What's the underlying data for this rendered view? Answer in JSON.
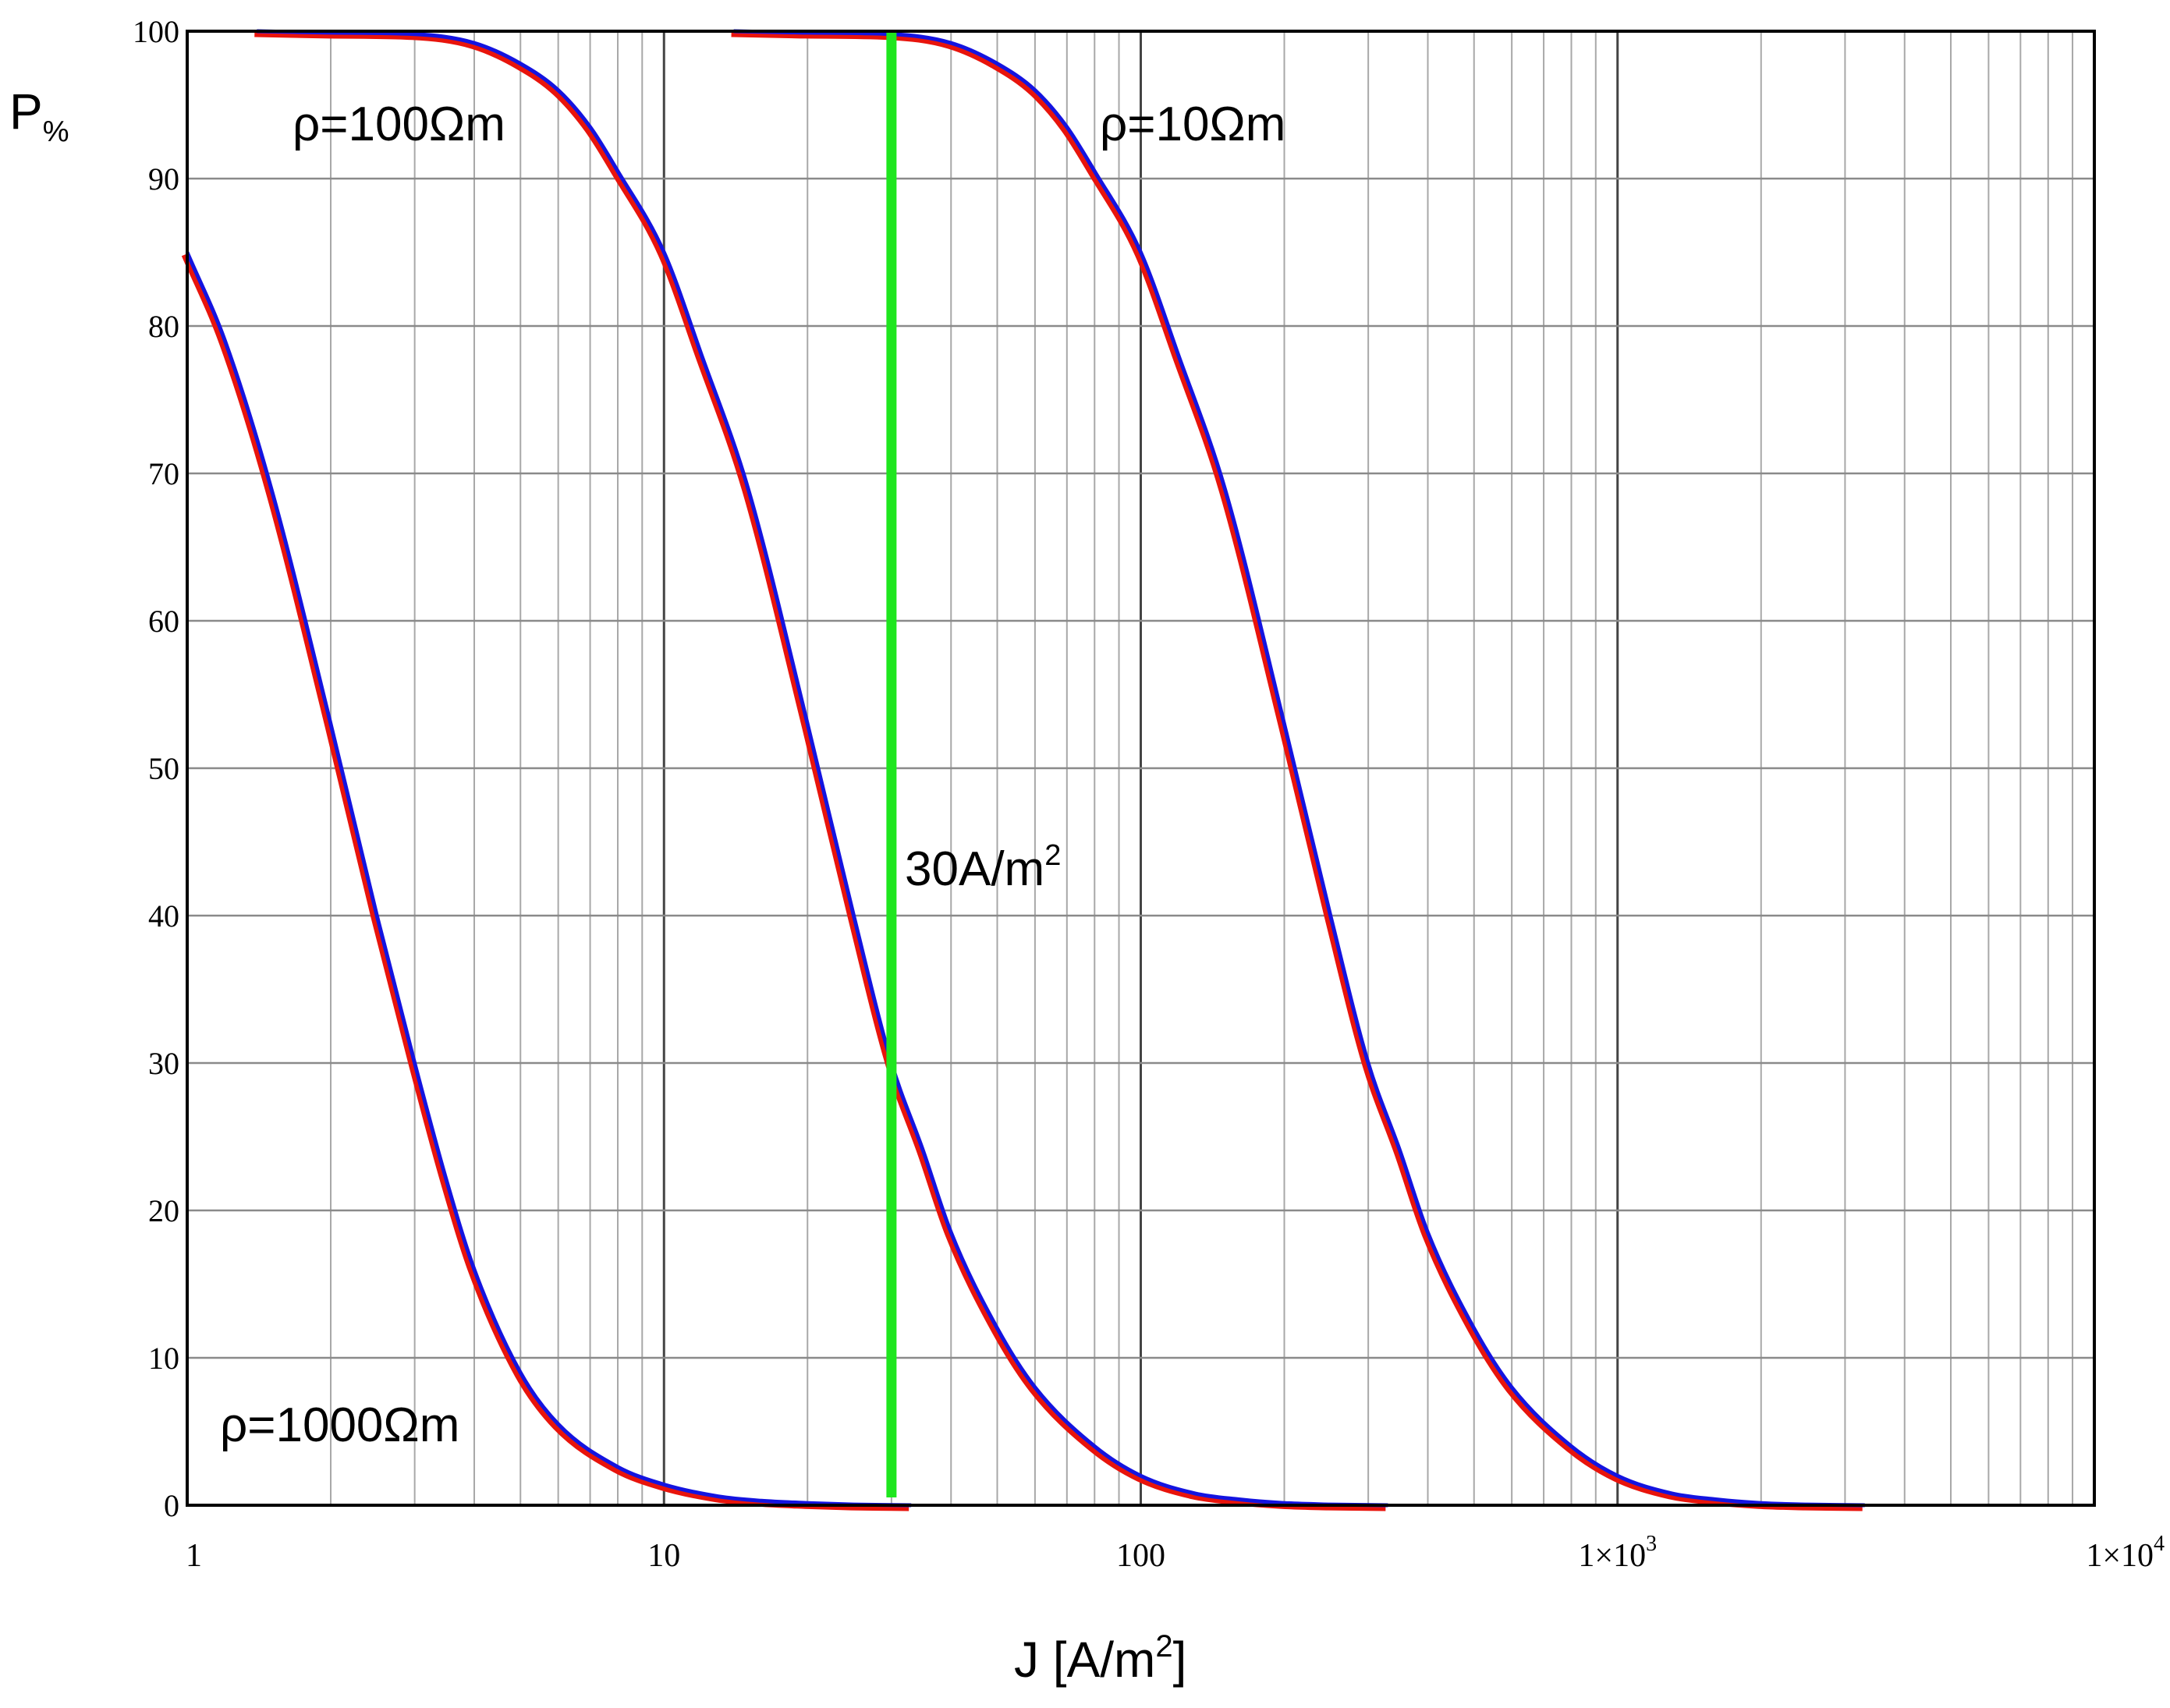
{
  "chart_data": {
    "type": "line",
    "title": "",
    "xlabel": {
      "main": "J [A/m",
      "sup": "2",
      "tail": "]"
    },
    "ylabel": {
      "main": "P",
      "sub": "%"
    },
    "xscale": "log",
    "xlim": [
      1,
      10000
    ],
    "ylim": [
      0,
      100
    ],
    "grid": true,
    "x_ticks": [
      {
        "value": 1,
        "main": "1",
        "sup": ""
      },
      {
        "value": 10,
        "main": "10",
        "sup": ""
      },
      {
        "value": 100,
        "main": "100",
        "sup": ""
      },
      {
        "value": 1000,
        "main": "1×10",
        "sup": "3"
      },
      {
        "value": 10000,
        "main": "1×10",
        "sup": "4"
      }
    ],
    "y_ticks": [
      0,
      10,
      20,
      30,
      40,
      50,
      60,
      70,
      80,
      90,
      100
    ],
    "series": [
      {
        "name": "ρ=1000Ωm",
        "colors": {
          "measured": "#e8140c",
          "fitted": "#1414e0"
        },
        "J_values": [
          1,
          1.2,
          1.5,
          2,
          2.5,
          3,
          3.5,
          4,
          5,
          6,
          8,
          10,
          13,
          16,
          20,
          25,
          33
        ],
        "P_values": [
          85,
          79,
          69,
          53,
          40,
          30,
          22,
          16,
          9,
          5.5,
          2.6,
          1.4,
          0.6,
          0.3,
          0.15,
          0.05,
          0
        ]
      },
      {
        "name": "ρ=100Ωm",
        "colors": {
          "measured": "#e8140c",
          "fitted": "#1414e0"
        },
        "J_values": [
          1.4,
          2,
          3,
          4,
          5,
          6,
          7,
          8,
          10,
          12,
          15,
          20,
          25,
          30,
          35,
          40,
          50,
          60,
          80,
          100,
          130,
          160,
          200,
          250,
          330
        ],
        "P_values": [
          100,
          99.9,
          99.8,
          99.2,
          97.8,
          96,
          93.5,
          90.5,
          85,
          78,
          69,
          53,
          40,
          30,
          24,
          18.5,
          12,
          8,
          4,
          2,
          0.8,
          0.4,
          0.15,
          0.05,
          0
        ]
      },
      {
        "name": "ρ=10Ωm",
        "colors": {
          "measured": "#e8140c",
          "fitted": "#1414e0"
        },
        "J_values": [
          14,
          20,
          30,
          40,
          50,
          60,
          70,
          80,
          100,
          120,
          150,
          200,
          250,
          300,
          350,
          400,
          500,
          600,
          800,
          1000,
          1300,
          1600,
          2000,
          2500,
          3300
        ],
        "P_values": [
          100,
          99.9,
          99.8,
          99.2,
          97.8,
          96,
          93.5,
          90.5,
          85,
          78,
          69,
          53,
          40,
          30,
          24,
          18.5,
          12,
          8,
          4,
          2,
          0.8,
          0.4,
          0.15,
          0.05,
          0
        ]
      }
    ],
    "reference_line": {
      "J": 30,
      "color": "#1ee61e",
      "label_main": "30A/m",
      "label_sup": "2"
    },
    "annotations": [
      {
        "text": "ρ=100Ωm",
        "near_series": "ρ=100Ωm",
        "placement": "top-left"
      },
      {
        "text": "ρ=10Ωm",
        "near_series": "ρ=10Ωm",
        "placement": "top-center"
      },
      {
        "text": "ρ=1000Ωm",
        "near_series": "ρ=1000Ωm",
        "placement": "bottom-left"
      }
    ]
  }
}
